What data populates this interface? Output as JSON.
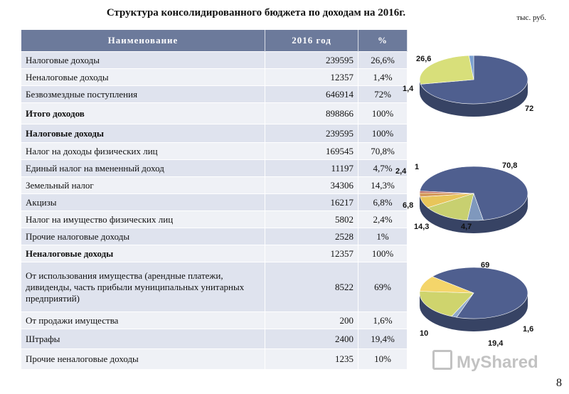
{
  "title": "Структура консолидированного бюджета по доходам на 2016г.",
  "units": "тыс. руб.",
  "headers": [
    "Наименование",
    "2016 год",
    "%"
  ],
  "rows": [
    {
      "name": "Налоговые доходы",
      "value": "239595",
      "pct": "26,6%",
      "bold": false
    },
    {
      "name": "Неналоговые доходы",
      "value": "12357",
      "pct": "1,4%",
      "bold": false
    },
    {
      "name": "Безвозмездные поступления",
      "value": "646914",
      "pct": "72%",
      "bold": false
    },
    {
      "name": "Итого доходов",
      "value": "898866",
      "pct": "100%",
      "bold": true
    },
    {
      "name": "Налоговые доходы",
      "value": "239595",
      "pct": "100%",
      "bold": true
    },
    {
      "name": "Налог на доходы физических лиц",
      "value": "169545",
      "pct": "70,8%",
      "bold": false
    },
    {
      "name": "Единый налог на вмененный доход",
      "value": "11197",
      "pct": "4,7%",
      "bold": false
    },
    {
      "name": "Земельный налог",
      "value": "34306",
      "pct": "14,3%",
      "bold": false
    },
    {
      "name": "Акцизы",
      "value": "16217",
      "pct": "6,8%",
      "bold": false
    },
    {
      "name": "Налог на имущество физических лиц",
      "value": "5802",
      "pct": "2,4%",
      "bold": false
    },
    {
      "name": "Прочие налоговые доходы",
      "value": "2528",
      "pct": "1%",
      "bold": false
    },
    {
      "name": "Неналоговые доходы",
      "value": "12357",
      "pct": "100%",
      "bold": true
    },
    {
      "name": "От использования имущества (арендные платежи, дивиденды, часть прибыли муниципальных унитарных предприятий)",
      "value": "8522",
      "pct": "69%",
      "bold": false
    },
    {
      "name": "От продажи имущества",
      "value": "200",
      "pct": "1,6%",
      "bold": false
    },
    {
      "name": "Штрафы",
      "value": "2400",
      "pct": "19,4%",
      "bold": false
    },
    {
      "name": "Прочие неналоговые доходы",
      "value": "1235",
      "pct": "10%",
      "bold": false
    }
  ],
  "chart_data": [
    {
      "type": "pie",
      "labels": [
        "72",
        "26,6",
        "1,4"
      ],
      "values": [
        72,
        26.6,
        1.4
      ],
      "colors": [
        "#4f5f8f",
        "#d8df7a",
        "#7aa0d0"
      ]
    },
    {
      "type": "pie",
      "labels": [
        "70,8",
        "4,7",
        "14,3",
        "6,8",
        "2,4",
        "1"
      ],
      "values": [
        70.8,
        4.7,
        14.3,
        6.8,
        2.4,
        1
      ],
      "colors": [
        "#4f5f8f",
        "#7f98bd",
        "#c8d070",
        "#e8c55a",
        "#d49a5c",
        "#b85b4f"
      ]
    },
    {
      "type": "pie",
      "labels": [
        "69",
        "1,6",
        "19,4",
        "10"
      ],
      "values": [
        69,
        1.6,
        19.4,
        10
      ],
      "colors": [
        "#4f5f8f",
        "#8fa7c9",
        "#cfd46d",
        "#f4d56a"
      ]
    }
  ],
  "page_number": "8",
  "watermark": "MyShared"
}
